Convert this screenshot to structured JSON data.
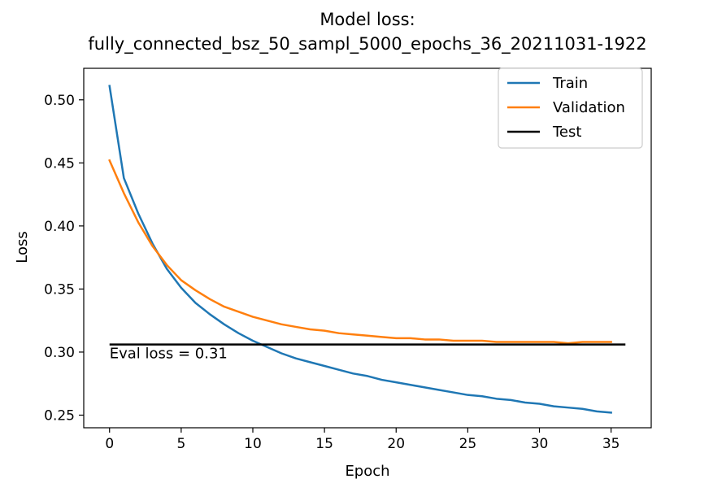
{
  "chart_data": {
    "type": "line",
    "title": "Model loss:",
    "subtitle": "fully_connected_bsz_50_sampl_5000_epochs_36_20211031-1922",
    "xlabel": "Epoch",
    "ylabel": "Loss",
    "xlim": [
      -1.8,
      37.8
    ],
    "ylim": [
      0.24,
      0.525
    ],
    "x_ticks": [
      0,
      5,
      10,
      15,
      20,
      25,
      30,
      35
    ],
    "x_tick_labels": [
      "0",
      "5",
      "10",
      "15",
      "20",
      "25",
      "30",
      "35"
    ],
    "y_ticks": [
      0.25,
      0.3,
      0.35,
      0.4,
      0.45,
      0.5
    ],
    "y_tick_labels": [
      "0.25",
      "0.30",
      "0.35",
      "0.40",
      "0.45",
      "0.50"
    ],
    "grid": false,
    "legend_position": "top-right",
    "x": [
      0,
      1,
      2,
      3,
      4,
      5,
      6,
      7,
      8,
      9,
      10,
      11,
      12,
      13,
      14,
      15,
      16,
      17,
      18,
      19,
      20,
      21,
      22,
      23,
      24,
      25,
      26,
      27,
      28,
      29,
      30,
      31,
      32,
      33,
      34,
      35
    ],
    "series": [
      {
        "name": "Train",
        "color": "#1f77b4",
        "values": [
          0.511,
          0.438,
          0.41,
          0.386,
          0.366,
          0.351,
          0.339,
          0.33,
          0.322,
          0.315,
          0.309,
          0.304,
          0.299,
          0.295,
          0.292,
          0.289,
          0.286,
          0.283,
          0.281,
          0.278,
          0.276,
          0.274,
          0.272,
          0.27,
          0.268,
          0.266,
          0.265,
          0.263,
          0.262,
          0.26,
          0.259,
          0.257,
          0.256,
          0.255,
          0.253,
          0.252
        ]
      },
      {
        "name": "Validation",
        "color": "#ff7f0e",
        "values": [
          0.452,
          0.426,
          0.403,
          0.384,
          0.369,
          0.357,
          0.349,
          0.342,
          0.336,
          0.332,
          0.328,
          0.325,
          0.322,
          0.32,
          0.318,
          0.317,
          0.315,
          0.314,
          0.313,
          0.312,
          0.311,
          0.311,
          0.31,
          0.31,
          0.309,
          0.309,
          0.309,
          0.308,
          0.308,
          0.308,
          0.308,
          0.308,
          0.307,
          0.308,
          0.308,
          0.308
        ]
      }
    ],
    "test_line": {
      "name": "Test",
      "color": "#000000",
      "value": 0.306,
      "x_start": 0,
      "x_end": 36
    },
    "annotation": {
      "text": "Eval loss = 0.31",
      "x": 0,
      "y": 0.306
    }
  }
}
